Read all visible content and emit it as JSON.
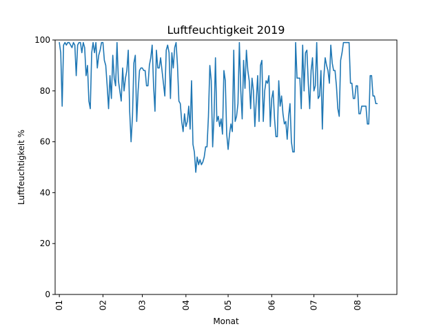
{
  "chart_data": {
    "type": "line",
    "title": "Luftfeuchtigkeit 2019",
    "xlabel": "Monat",
    "ylabel": "Luftfeuchtigkeit %",
    "ylim": [
      0,
      100
    ],
    "xlim_days": [
      -3,
      240
    ],
    "yticks": [
      0,
      20,
      40,
      60,
      80,
      100
    ],
    "xticks": [
      {
        "label": "01",
        "day": 0
      },
      {
        "label": "02",
        "day": 31
      },
      {
        "label": "03",
        "day": 59
      },
      {
        "label": "04",
        "day": 90
      },
      {
        "label": "05",
        "day": 120
      },
      {
        "label": "06",
        "day": 151
      },
      {
        "label": "07",
        "day": 181
      },
      {
        "label": "08",
        "day": 212
      }
    ],
    "grid": false,
    "color": "#1f77b4",
    "series": [
      {
        "values": [
          99,
          95,
          74,
          98,
          99,
          98,
          99,
          99,
          98,
          97,
          99,
          98,
          86,
          98,
          99,
          99,
          95,
          99,
          97,
          86,
          90,
          76,
          73,
          95,
          99,
          95,
          99,
          89,
          94,
          96,
          99,
          99,
          92,
          90,
          82,
          73,
          86,
          77,
          94,
          85,
          82,
          99,
          84,
          80,
          76,
          89,
          80,
          85,
          88,
          96,
          72,
          60,
          70,
          91,
          94,
          68,
          80,
          88,
          89,
          89,
          88,
          88,
          82,
          82,
          90,
          93,
          98,
          82,
          72,
          96,
          89,
          89,
          93,
          88,
          83,
          78,
          96,
          98,
          95,
          77,
          95,
          89,
          97,
          99,
          90,
          76,
          75,
          68,
          64,
          71,
          66,
          68,
          74,
          65,
          84,
          59,
          56,
          48,
          54,
          51,
          53,
          51,
          52,
          54,
          58,
          58,
          70,
          90,
          84,
          58,
          70,
          93,
          68,
          70,
          66,
          69,
          63,
          88,
          84,
          63,
          57,
          63,
          67,
          64,
          96,
          68,
          70,
          75,
          99,
          80,
          69,
          92,
          81,
          96,
          88,
          84,
          73,
          85,
          80,
          66,
          76,
          86,
          68,
          90,
          92,
          68,
          80,
          84,
          83,
          86,
          66,
          77,
          80,
          69,
          62,
          62,
          84,
          74,
          78,
          71,
          67,
          68,
          61,
          70,
          75,
          60,
          56,
          56,
          99,
          85,
          85,
          85,
          73,
          98,
          80,
          95,
          96,
          83,
          73,
          88,
          93,
          80,
          82,
          99,
          77,
          78,
          88,
          65,
          85,
          93,
          90,
          88,
          83,
          98,
          91,
          88,
          88,
          82,
          73,
          70,
          92,
          95,
          99,
          99,
          99,
          99,
          99,
          83,
          83,
          77,
          77,
          82,
          82,
          71,
          71,
          74,
          74,
          74,
          74,
          67,
          67,
          86,
          86,
          78,
          78,
          75,
          75
        ]
      }
    ]
  }
}
